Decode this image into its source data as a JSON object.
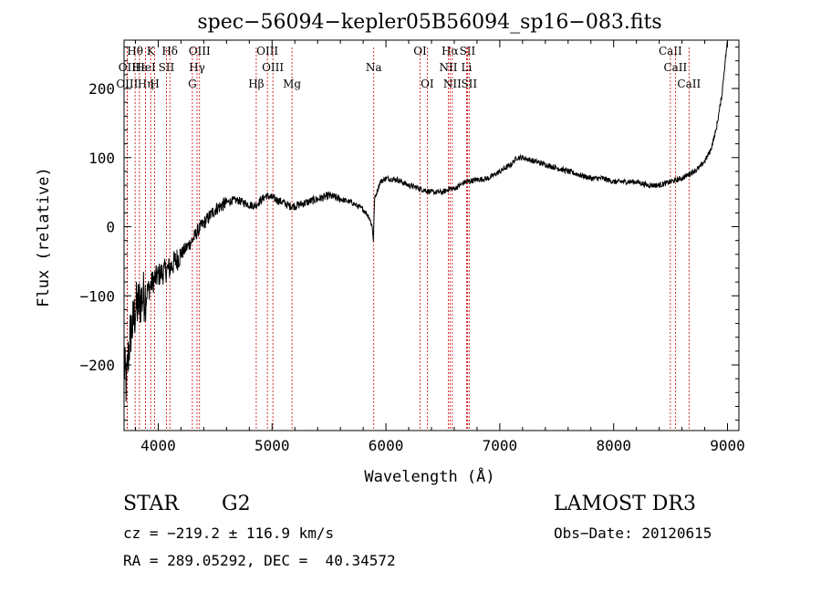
{
  "chart_data": {
    "type": "line",
    "title": "spec−56094−kepler05B56094_sp16−083.fits",
    "xlabel": "Wavelength (Å)",
    "ylabel": "Flux (relative)",
    "xlim": [
      3700,
      9100
    ],
    "ylim": [
      -295,
      270
    ],
    "xticks": [
      4000,
      5000,
      6000,
      7000,
      8000,
      9000
    ],
    "yticks": [
      -200,
      -100,
      0,
      100,
      200
    ],
    "grid": false,
    "series": [
      {
        "name": "flux",
        "color": "#000000",
        "x": [
          3700,
          3720,
          3740,
          3760,
          3780,
          3800,
          3850,
          3900,
          3950,
          4000,
          4050,
          4100,
          4150,
          4200,
          4250,
          4300,
          4350,
          4400,
          4450,
          4500,
          4550,
          4600,
          4650,
          4700,
          4750,
          4800,
          4850,
          4900,
          4950,
          5000,
          5050,
          5100,
          5150,
          5200,
          5300,
          5400,
          5500,
          5600,
          5700,
          5800,
          5850,
          5880,
          5890,
          5900,
          5950,
          6000,
          6100,
          6200,
          6300,
          6400,
          6500,
          6560,
          6600,
          6700,
          6800,
          6900,
          7000,
          7100,
          7150,
          7200,
          7300,
          7400,
          7500,
          7600,
          7700,
          7800,
          7900,
          8000,
          8100,
          8200,
          8300,
          8400,
          8500,
          8600,
          8700,
          8750,
          8800,
          8850,
          8900,
          8950,
          8980,
          9000
        ],
        "y": [
          -200,
          -230,
          -180,
          -150,
          -140,
          -120,
          -105,
          -95,
          -80,
          -70,
          -65,
          -60,
          -50,
          -40,
          -30,
          -20,
          -5,
          5,
          15,
          25,
          30,
          35,
          38,
          38,
          35,
          32,
          30,
          38,
          45,
          42,
          38,
          35,
          30,
          30,
          35,
          40,
          45,
          40,
          35,
          25,
          15,
          0,
          -20,
          40,
          65,
          70,
          68,
          60,
          55,
          50,
          50,
          55,
          55,
          65,
          68,
          70,
          80,
          90,
          100,
          100,
          95,
          90,
          85,
          80,
          75,
          70,
          70,
          65,
          65,
          65,
          60,
          60,
          65,
          70,
          80,
          85,
          95,
          110,
          140,
          190,
          240,
          270
        ]
      }
    ],
    "lines": [
      {
        "row": 0,
        "label": "Hθ",
        "x": 3797
      },
      {
        "row": 1,
        "label": "OII",
        "x": 3727
      },
      {
        "row": 2,
        "label": "OIII",
        "x": 3727
      },
      {
        "row": 1,
        "label": "Hε",
        "x": 3835
      },
      {
        "row": 2,
        "label": "Hη",
        "x": 3889
      },
      {
        "row": 0,
        "label": "K",
        "x": 3934
      },
      {
        "row": 1,
        "label": "HeI",
        "x": 3889
      },
      {
        "row": 2,
        "label": "H",
        "x": 3969
      },
      {
        "row": 1,
        "label": "SII",
        "x": 4072
      },
      {
        "row": 0,
        "label": "Hδ",
        "x": 4102
      },
      {
        "row": 0,
        "label": "OIII",
        "x": 4363
      },
      {
        "row": 1,
        "label": "Hγ",
        "x": 4341
      },
      {
        "row": 2,
        "label": "G",
        "x": 4300
      },
      {
        "row": 2,
        "label": "Hβ",
        "x": 4861
      },
      {
        "row": 0,
        "label": "OIII",
        "x": 4959
      },
      {
        "row": 1,
        "label": "OIII",
        "x": 5007
      },
      {
        "row": 2,
        "label": "Mg",
        "x": 5175
      },
      {
        "row": 1,
        "label": "Na",
        "x": 5893
      },
      {
        "row": 0,
        "label": "OI",
        "x": 6300
      },
      {
        "row": 2,
        "label": "OI",
        "x": 6363
      },
      {
        "row": 0,
        "label": "Hα",
        "x": 6563
      },
      {
        "row": 1,
        "label": "NII",
        "x": 6548
      },
      {
        "row": 2,
        "label": "NII",
        "x": 6583
      },
      {
        "row": 0,
        "label": "SII",
        "x": 6716
      },
      {
        "row": 1,
        "label": "Li",
        "x": 6708
      },
      {
        "row": 2,
        "label": "SII",
        "x": 6731
      },
      {
        "row": 0,
        "label": "CaII",
        "x": 8498
      },
      {
        "row": 1,
        "label": "CaII",
        "x": 8542
      },
      {
        "row": 2,
        "label": "CaII",
        "x": 8662
      }
    ]
  },
  "info": {
    "class": "STAR",
    "subclass": "G2",
    "survey": "LAMOST DR3",
    "cz": "cz = −219.2 ± 116.9 km/s",
    "obs_date": "Obs−Date: 20120615",
    "coords": "RA = 289.05292, DEC =  40.34572"
  }
}
